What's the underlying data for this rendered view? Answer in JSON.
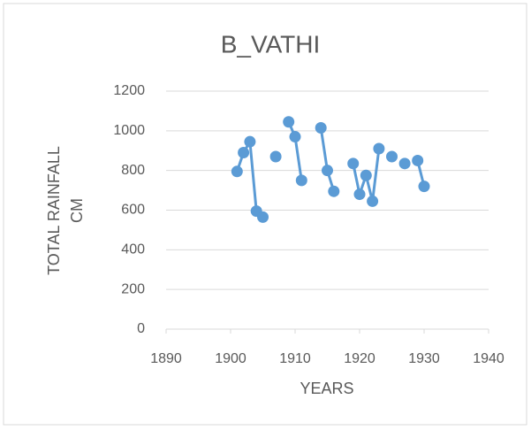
{
  "chart_data": {
    "type": "line",
    "title": "B_VATHI",
    "x_label": "YEARS",
    "y_label": [
      "TOTAL RAINFALL",
      "CM"
    ],
    "x": [
      1901,
      1902,
      1903,
      1904,
      1905,
      1906,
      1907,
      1908,
      1909,
      1910,
      1911,
      1912,
      1913,
      1914,
      1915,
      1916,
      1917,
      1918,
      1919,
      1920,
      1921,
      1922,
      1923,
      1924,
      1925,
      1926,
      1927,
      1928,
      1929,
      1930
    ],
    "series": [
      {
        "name": "B_VATHI",
        "color": "#5b9bd5",
        "values": [
          795,
          890,
          945,
          595,
          565,
          null,
          870,
          null,
          1045,
          970,
          750,
          null,
          null,
          1015,
          800,
          695,
          null,
          null,
          835,
          680,
          775,
          645,
          910,
          null,
          870,
          null,
          835,
          null,
          850,
          720
        ]
      }
    ],
    "xlim": [
      1890,
      1940
    ],
    "xticks": [
      1890,
      1900,
      1910,
      1920,
      1930,
      1940
    ],
    "ylim": [
      0,
      1200
    ],
    "yticks": [
      0,
      200,
      400,
      600,
      800,
      1000,
      1200
    ],
    "grid": true
  }
}
